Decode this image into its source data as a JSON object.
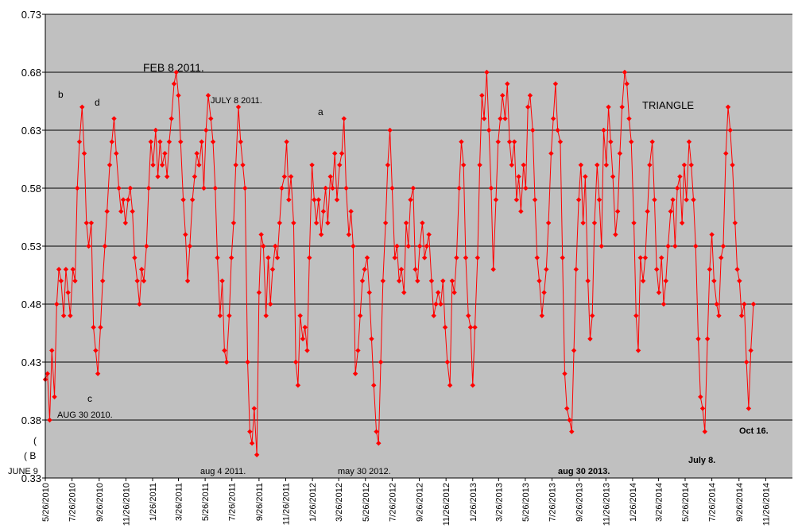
{
  "chart_data": {
    "type": "line",
    "color": "#ff0000",
    "marker": "diamond",
    "grid": true,
    "xlim": [
      "5/26/2010",
      "1/26/2015"
    ],
    "xticks": [
      "5/26/2010",
      "7/26/2010",
      "9/26/2010",
      "11/26/2010",
      "1/26/2011",
      "3/26/2011",
      "5/26/2011",
      "7/26/2011",
      "9/26/2011",
      "11/26/2011",
      "1/26/2012",
      "3/26/2012",
      "5/26/2012",
      "7/26/2012",
      "9/26/2012",
      "11/26/2012",
      "1/26/2013",
      "3/26/2013",
      "5/26/2013",
      "7/26/2013",
      "9/26/2013",
      "11/26/2013",
      "1/26/2014",
      "3/26/2014",
      "5/26/2014",
      "7/26/2014",
      "9/26/2014",
      "11/26/2014"
    ],
    "ylim": [
      0.33,
      0.73
    ],
    "yticks": [
      0.33,
      0.38,
      0.43,
      0.48,
      0.53,
      0.58,
      0.63,
      0.68,
      0.73
    ],
    "annotations": [
      "b",
      "d",
      "FEB 8 2011.",
      "JULY 8 2011.",
      "a",
      "TRIANGLE",
      "c",
      "AUG 30 2010.",
      "(",
      "( B",
      "JUNE 9",
      "aug 4 2011.",
      "may 30 2012.",
      "aug 30 2013.",
      "July 8.",
      "Oct 16."
    ],
    "x": [
      "5/26/2010",
      "5/31/2010",
      "6/5/2010",
      "6/10/2010",
      "6/16/2010",
      "6/21/2010",
      "6/26/2010",
      "7/1/2010",
      "7/7/2010",
      "7/12/2010",
      "7/17/2010",
      "7/22/2010",
      "7/28/2010",
      "8/2/2010",
      "8/7/2010",
      "8/12/2010",
      "8/18/2010",
      "8/23/2010",
      "8/28/2010",
      "9/2/2010",
      "9/8/2010",
      "9/13/2010",
      "9/18/2010",
      "9/23/2010",
      "9/29/2010",
      "10/4/2010",
      "10/9/2010",
      "10/14/2010",
      "10/20/2010",
      "10/25/2010",
      "10/30/2010",
      "11/4/2010",
      "11/10/2010",
      "11/15/2010",
      "11/20/2010",
      "11/25/2010",
      "12/1/2010",
      "12/6/2010",
      "12/11/2010",
      "12/16/2010",
      "12/22/2010",
      "12/27/2010",
      "1/1/2011",
      "1/6/2011",
      "1/12/2011",
      "1/17/2011",
      "1/22/2011",
      "1/27/2011",
      "2/2/2011",
      "2/7/2011",
      "2/12/2011",
      "2/17/2011",
      "2/23/2011",
      "2/28/2011",
      "3/5/2011",
      "3/10/2011",
      "3/16/2011",
      "3/21/2011",
      "3/26/2011",
      "3/31/2011",
      "4/6/2011",
      "4/11/2011",
      "4/16/2011",
      "4/21/2011",
      "4/27/2011",
      "5/2/2011",
      "5/7/2011",
      "5/12/2011",
      "5/18/2011",
      "5/23/2011",
      "5/28/2011",
      "6/2/2011",
      "6/8/2011",
      "6/13/2011",
      "6/18/2011",
      "6/23/2011",
      "6/29/2011",
      "7/4/2011",
      "7/9/2011",
      "7/14/2011",
      "7/20/2011",
      "7/25/2011",
      "7/30/2011",
      "8/4/2011",
      "8/10/2011",
      "8/15/2011",
      "8/20/2011",
      "8/25/2011",
      "8/31/2011",
      "9/5/2011",
      "9/10/2011",
      "9/15/2011",
      "9/21/2011",
      "9/26/2011",
      "10/1/2011",
      "10/6/2011",
      "10/12/2011",
      "10/17/2011",
      "10/22/2011",
      "10/27/2011",
      "11/2/2011",
      "11/7/2011",
      "11/12/2011",
      "11/17/2011",
      "11/23/2011",
      "11/28/2011",
      "12/3/2011",
      "12/8/2011",
      "12/14/2011",
      "12/19/2011",
      "12/24/2011",
      "12/29/2011",
      "1/4/2012",
      "1/9/2012",
      "1/14/2012",
      "1/19/2012",
      "1/25/2012",
      "1/30/2012",
      "2/4/2012",
      "2/9/2012",
      "2/15/2012",
      "2/20/2012",
      "2/25/2012",
      "3/1/2012",
      "3/7/2012",
      "3/12/2012",
      "3/17/2012",
      "3/22/2012",
      "3/28/2012",
      "4/2/2012",
      "4/7/2012",
      "4/12/2012",
      "4/18/2012",
      "4/23/2012",
      "4/28/2012",
      "5/3/2012",
      "5/9/2012",
      "5/14/2012",
      "5/19/2012",
      "5/24/2012",
      "5/30/2012",
      "6/4/2012",
      "6/9/2012",
      "6/14/2012",
      "6/20/2012",
      "6/25/2012",
      "6/30/2012",
      "7/5/2012",
      "7/11/2012",
      "7/16/2012",
      "7/21/2012",
      "7/26/2012",
      "8/1/2012",
      "8/6/2012",
      "8/11/2012",
      "8/16/2012",
      "8/22/2012",
      "8/27/2012",
      "9/1/2012",
      "9/6/2012",
      "9/12/2012",
      "9/17/2012",
      "9/22/2012",
      "9/27/2012",
      "10/3/2012",
      "10/8/2012",
      "10/13/2012",
      "10/18/2012",
      "10/24/2012",
      "10/29/2012",
      "11/3/2012",
      "11/8/2012",
      "11/14/2012",
      "11/19/2012",
      "11/24/2012",
      "11/29/2012",
      "12/5/2012",
      "12/10/2012",
      "12/15/2012",
      "12/20/2012",
      "12/26/2012",
      "12/31/2012",
      "1/5/2013",
      "1/10/2013",
      "1/16/2013",
      "1/21/2013",
      "1/26/2013",
      "1/31/2013",
      "2/6/2013",
      "2/11/2013",
      "2/16/2013",
      "2/21/2013",
      "2/27/2013",
      "3/4/2013",
      "3/9/2013",
      "3/14/2013",
      "3/20/2013",
      "3/25/2013",
      "3/30/2013",
      "4/4/2013",
      "4/10/2013",
      "4/15/2013",
      "4/20/2013",
      "4/25/2013",
      "5/1/2013",
      "5/6/2013",
      "5/11/2013",
      "5/16/2013",
      "5/22/2013",
      "5/27/2013",
      "6/1/2013",
      "6/6/2013",
      "6/12/2013",
      "6/17/2013",
      "6/22/2013",
      "6/27/2013",
      "7/3/2013",
      "7/8/2013",
      "7/13/2013",
      "7/18/2013",
      "7/24/2013",
      "7/29/2013",
      "8/3/2013",
      "8/8/2013",
      "8/14/2013",
      "8/19/2013",
      "8/24/2013",
      "8/29/2013",
      "9/4/2013",
      "9/9/2013",
      "9/14/2013",
      "9/19/2013",
      "9/25/2013",
      "9/30/2013",
      "10/5/2013",
      "10/10/2013",
      "10/16/2013",
      "10/21/2013",
      "10/26/2013",
      "10/31/2013",
      "11/6/2013",
      "11/11/2013",
      "11/16/2013",
      "11/21/2013",
      "11/27/2013",
      "12/2/2013",
      "12/7/2013",
      "12/12/2013",
      "12/18/2013",
      "12/23/2013",
      "12/28/2013",
      "1/2/2014",
      "1/8/2014",
      "1/13/2014",
      "1/18/2014",
      "1/23/2014",
      "1/29/2014",
      "2/3/2014",
      "2/8/2014",
      "2/13/2014",
      "2/19/2014",
      "2/24/2014",
      "3/1/2014",
      "3/6/2014",
      "3/12/2014",
      "3/17/2014",
      "3/22/2014",
      "3/27/2014",
      "4/2/2014",
      "4/7/2014",
      "4/12/2014",
      "4/17/2014",
      "4/23/2014",
      "4/28/2014",
      "5/3/2014",
      "5/8/2014",
      "5/14/2014",
      "5/19/2014",
      "5/24/2014",
      "5/29/2014",
      "6/4/2014",
      "6/9/2014",
      "6/14/2014",
      "6/19/2014",
      "6/25/2014",
      "6/30/2014",
      "7/5/2014",
      "7/10/2014",
      "7/16/2014",
      "7/21/2014",
      "7/26/2014",
      "7/31/2014",
      "8/6/2014",
      "8/11/2014",
      "8/16/2014",
      "8/21/2014",
      "8/27/2014",
      "9/1/2014",
      "9/6/2014",
      "9/11/2014",
      "9/17/2014",
      "9/22/2014",
      "9/27/2014",
      "10/2/2014",
      "10/8/2014",
      "10/13/2014",
      "10/18/2014",
      "10/23/2014",
      "10/29/2014"
    ],
    "values": [
      0.415,
      0.42,
      0.38,
      0.44,
      0.4,
      0.48,
      0.51,
      0.5,
      0.47,
      0.51,
      0.49,
      0.47,
      0.51,
      0.5,
      0.58,
      0.62,
      0.65,
      0.61,
      0.55,
      0.53,
      0.55,
      0.46,
      0.44,
      0.42,
      0.46,
      0.5,
      0.53,
      0.56,
      0.6,
      0.62,
      0.64,
      0.61,
      0.58,
      0.56,
      0.57,
      0.55,
      0.57,
      0.58,
      0.56,
      0.52,
      0.5,
      0.48,
      0.51,
      0.5,
      0.53,
      0.58,
      0.62,
      0.6,
      0.63,
      0.59,
      0.62,
      0.6,
      0.61,
      0.59,
      0.62,
      0.64,
      0.67,
      0.68,
      0.66,
      0.62,
      0.57,
      0.54,
      0.5,
      0.53,
      0.57,
      0.59,
      0.61,
      0.6,
      0.62,
      0.58,
      0.63,
      0.66,
      0.64,
      0.62,
      0.58,
      0.52,
      0.47,
      0.5,
      0.44,
      0.43,
      0.47,
      0.52,
      0.55,
      0.6,
      0.65,
      0.62,
      0.6,
      0.58,
      0.43,
      0.37,
      0.36,
      0.39,
      0.35,
      0.49,
      0.54,
      0.53,
      0.47,
      0.52,
      0.48,
      0.51,
      0.53,
      0.52,
      0.55,
      0.58,
      0.59,
      0.62,
      0.57,
      0.59,
      0.55,
      0.43,
      0.41,
      0.47,
      0.45,
      0.46,
      0.44,
      0.52,
      0.6,
      0.57,
      0.55,
      0.57,
      0.54,
      0.56,
      0.58,
      0.55,
      0.59,
      0.58,
      0.61,
      0.57,
      0.6,
      0.61,
      0.64,
      0.58,
      0.54,
      0.56,
      0.53,
      0.42,
      0.44,
      0.47,
      0.5,
      0.51,
      0.52,
      0.49,
      0.45,
      0.41,
      0.37,
      0.36,
      0.43,
      0.5,
      0.55,
      0.6,
      0.63,
      0.58,
      0.52,
      0.53,
      0.5,
      0.51,
      0.49,
      0.55,
      0.53,
      0.57,
      0.58,
      0.51,
      0.5,
      0.53,
      0.55,
      0.52,
      0.53,
      0.54,
      0.5,
      0.47,
      0.48,
      0.49,
      0.48,
      0.5,
      0.46,
      0.43,
      0.41,
      0.5,
      0.49,
      0.52,
      0.58,
      0.62,
      0.6,
      0.52,
      0.47,
      0.46,
      0.41,
      0.46,
      0.52,
      0.6,
      0.66,
      0.64,
      0.68,
      0.63,
      0.58,
      0.51,
      0.57,
      0.62,
      0.64,
      0.66,
      0.64,
      0.67,
      0.62,
      0.6,
      0.62,
      0.57,
      0.59,
      0.56,
      0.6,
      0.58,
      0.65,
      0.66,
      0.63,
      0.57,
      0.52,
      0.5,
      0.47,
      0.49,
      0.51,
      0.55,
      0.61,
      0.64,
      0.67,
      0.63,
      0.62,
      0.52,
      0.42,
      0.39,
      0.38,
      0.37,
      0.44,
      0.51,
      0.57,
      0.6,
      0.55,
      0.59,
      0.5,
      0.45,
      0.47,
      0.55,
      0.6,
      0.57,
      0.53,
      0.63,
      0.6,
      0.65,
      0.62,
      0.59,
      0.54,
      0.56,
      0.61,
      0.65,
      0.68,
      0.67,
      0.64,
      0.62,
      0.55,
      0.47,
      0.44,
      0.52,
      0.5,
      0.52,
      0.56,
      0.6,
      0.62,
      0.57,
      0.51,
      0.49,
      0.52,
      0.48,
      0.5,
      0.53,
      0.56,
      0.57,
      0.53,
      0.58,
      0.59,
      0.55,
      0.6,
      0.57,
      0.62,
      0.6,
      0.57,
      0.53,
      0.45,
      0.4,
      0.39,
      0.37,
      0.45,
      0.51,
      0.54,
      0.5,
      0.48,
      0.47,
      0.52,
      0.53,
      0.61,
      0.65,
      0.63,
      0.6,
      0.55,
      0.51,
      0.5,
      0.47,
      0.48,
      0.43,
      0.39,
      0.44,
      0.48
    ]
  }
}
